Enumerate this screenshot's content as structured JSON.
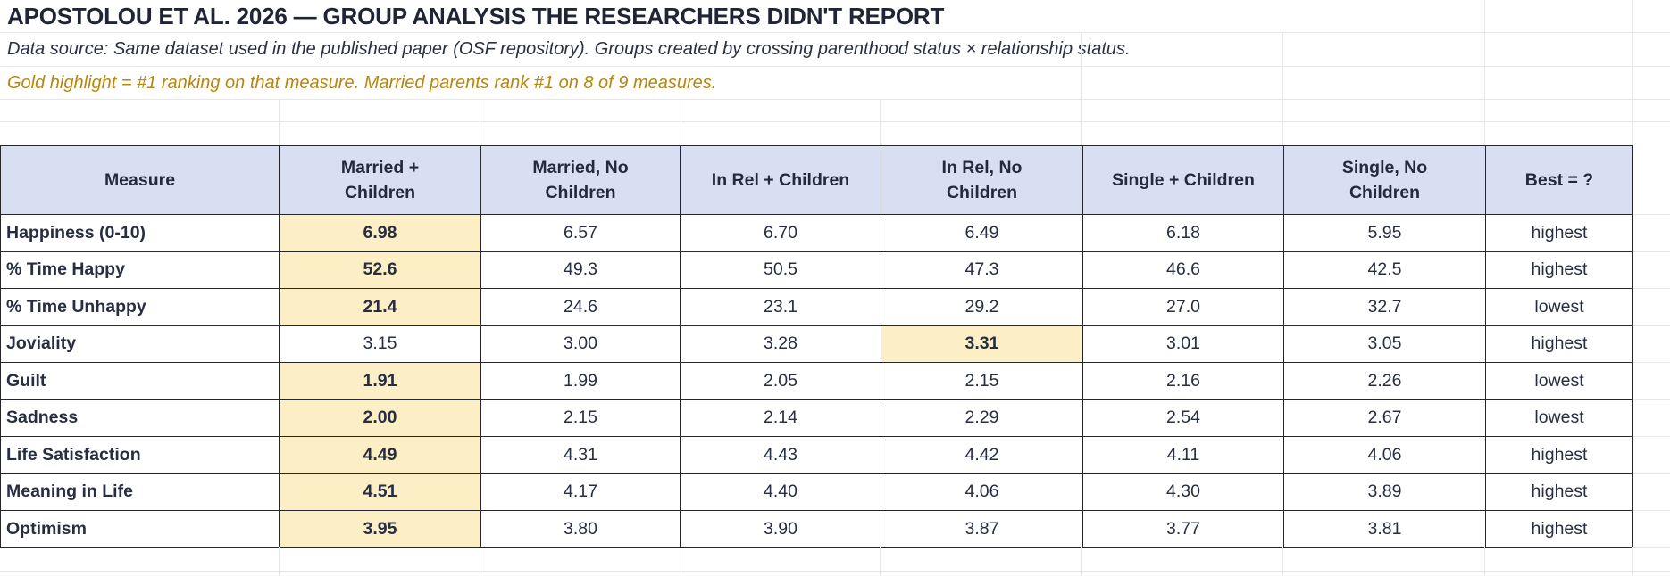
{
  "title": "APOSTOLOU ET AL. 2026 — GROUP ANALYSIS THE RESEARCHERS DIDN'T REPORT",
  "notes": {
    "source": "Data source: Same dataset used in the published paper (OSF repository). Groups created by crossing parenthood status × relationship status.",
    "legend": "Gold highlight = #1 ranking on that measure. Married parents rank #1 on 8 of 9 measures."
  },
  "colors": {
    "gold_note_text": "#b8860b",
    "highlight_bg": "#fceec5",
    "header_bg": "#d9dff2",
    "body_text": "#272e42",
    "title_text": "#1f2536",
    "table_border": "#26262b",
    "faint_gridline": "#e6e7ea"
  },
  "table": {
    "columns": [
      "Measure",
      "Married +\nChildren",
      "Married, No\nChildren",
      "In Rel + Children",
      "In Rel, No\nChildren",
      "Single + Children",
      "Single, No\nChildren",
      "Best = ?"
    ],
    "rows": [
      {
        "measure": "Happiness (0-10)",
        "values": [
          "6.98",
          "6.57",
          "6.70",
          "6.49",
          "6.18",
          "5.95"
        ],
        "best": "highest",
        "highlight": 0
      },
      {
        "measure": "% Time Happy",
        "values": [
          "52.6",
          "49.3",
          "50.5",
          "47.3",
          "46.6",
          "42.5"
        ],
        "best": "highest",
        "highlight": 0
      },
      {
        "measure": "% Time Unhappy",
        "values": [
          "21.4",
          "24.6",
          "23.1",
          "29.2",
          "27.0",
          "32.7"
        ],
        "best": "lowest",
        "highlight": 0
      },
      {
        "measure": "Joviality",
        "values": [
          "3.15",
          "3.00",
          "3.28",
          "3.31",
          "3.01",
          "3.05"
        ],
        "best": "highest",
        "highlight": 3
      },
      {
        "measure": "Guilt",
        "values": [
          "1.91",
          "1.99",
          "2.05",
          "2.15",
          "2.16",
          "2.26"
        ],
        "best": "lowest",
        "highlight": 0
      },
      {
        "measure": "Sadness",
        "values": [
          "2.00",
          "2.15",
          "2.14",
          "2.29",
          "2.54",
          "2.67"
        ],
        "best": "lowest",
        "highlight": 0
      },
      {
        "measure": "Life Satisfaction",
        "values": [
          "4.49",
          "4.31",
          "4.43",
          "4.42",
          "4.11",
          "4.06"
        ],
        "best": "highest",
        "highlight": 0
      },
      {
        "measure": "Meaning in Life",
        "values": [
          "4.51",
          "4.17",
          "4.40",
          "4.06",
          "4.30",
          "3.89"
        ],
        "best": "highest",
        "highlight": 0
      },
      {
        "measure": "Optimism",
        "values": [
          "3.95",
          "3.80",
          "3.90",
          "3.87",
          "3.77",
          "3.81"
        ],
        "best": "highest",
        "highlight": 0
      }
    ]
  }
}
